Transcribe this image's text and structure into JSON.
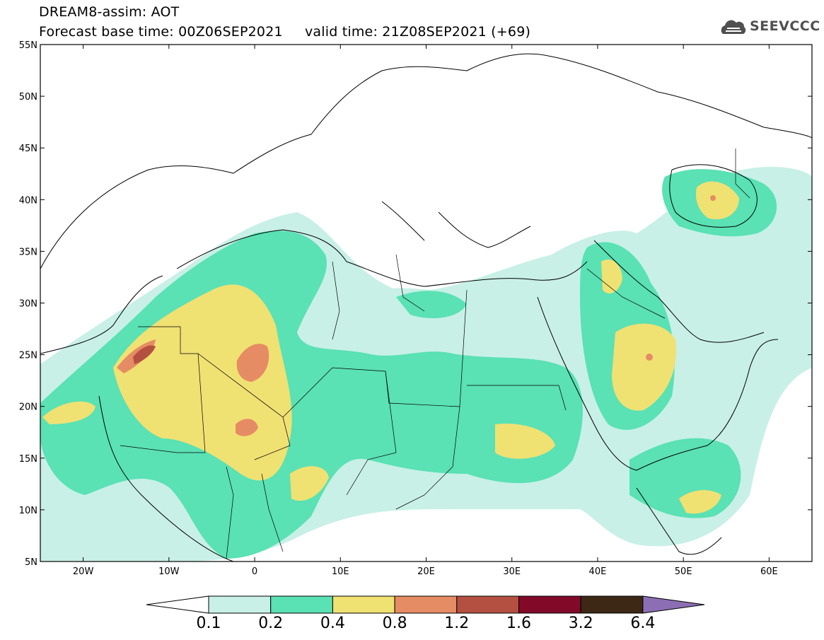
{
  "title": {
    "line1": "DREAM8-assim: AOT",
    "line2": "Forecast base time: 00Z06SEP2021     valid time: 21Z08SEP2021 (+69)"
  },
  "logo": {
    "text": "SEEVCCC",
    "icon": "cloud-icon"
  },
  "map": {
    "lat_labels": [
      "55N",
      "50N",
      "45N",
      "40N",
      "35N",
      "30N",
      "25N",
      "20N",
      "15N",
      "10N",
      "5N"
    ],
    "lon_labels": [
      "20W",
      "10W",
      "0",
      "10E",
      "20E",
      "30E",
      "40E",
      "50E",
      "60E"
    ],
    "lat_range": [
      5,
      55
    ],
    "lon_range": [
      -25,
      65
    ]
  },
  "colorbar": {
    "levels": [
      "0.1",
      "0.2",
      "0.4",
      "0.8",
      "1.2",
      "1.6",
      "3.2",
      "6.4"
    ],
    "colors": [
      "#c8f0e6",
      "#5ae1b4",
      "#f0e173",
      "#e68c64",
      "#b45041",
      "#820a28",
      "#3c2814",
      "#8c6eb4"
    ],
    "under_color": "#ffffff",
    "over_color": "#8c6eb4"
  }
}
